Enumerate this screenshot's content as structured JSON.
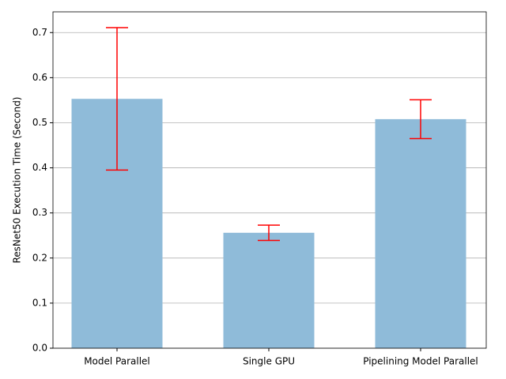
{
  "chart_data": {
    "type": "bar",
    "ylabel": "ResNet50 Execution Time (Second)",
    "categories": [
      "Model Parallel",
      "Single GPU",
      "Pipelining Model Parallel"
    ],
    "values": [
      0.553,
      0.256,
      0.508
    ],
    "errors": [
      0.158,
      0.017,
      0.043
    ],
    "color": "#8fbbd9",
    "error_color": "#ff0000",
    "ylim": [
      0,
      0.746
    ],
    "yticks": [
      {
        "value": 0,
        "label": "0.0"
      },
      0.1,
      0.2,
      0.3,
      0.4,
      0.5,
      0.6,
      0.7
    ],
    "grid": true
  }
}
